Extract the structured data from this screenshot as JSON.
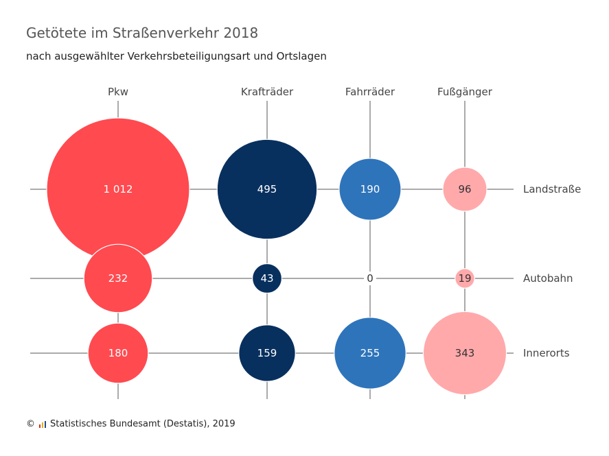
{
  "title": "Getötete im Straßenverkehr 2018",
  "subtitle": "nach ausgewählter Verkehrsbeteiligungsart und Ortslagen",
  "footer": {
    "copyright_symbol": "©",
    "source": "Statistisches Bundesamt (Destatis), 2019"
  },
  "colors": {
    "Pkw": "#FF4A50",
    "Krafträder": "#08305E",
    "Fahrräder": "#2E74BA",
    "Fußgänger": "#FFA9AB",
    "logo": [
      "#D52B1E",
      "#F2A900",
      "#1F4E8C"
    ]
  },
  "chart_data": {
    "type": "bubble-matrix",
    "columns": [
      "Pkw",
      "Krafträder",
      "Fahrräder",
      "Fußgänger"
    ],
    "rows": [
      "Landstraße",
      "Autobahn",
      "Innerorts"
    ],
    "values": [
      [
        1012,
        495,
        190,
        96
      ],
      [
        232,
        43,
        0,
        19
      ],
      [
        180,
        159,
        255,
        343
      ]
    ],
    "value_labels": [
      [
        "1 012",
        "495",
        "190",
        "96"
      ],
      [
        "232",
        "43",
        "0",
        "19"
      ],
      [
        "180",
        "159",
        "255",
        "343"
      ]
    ]
  }
}
